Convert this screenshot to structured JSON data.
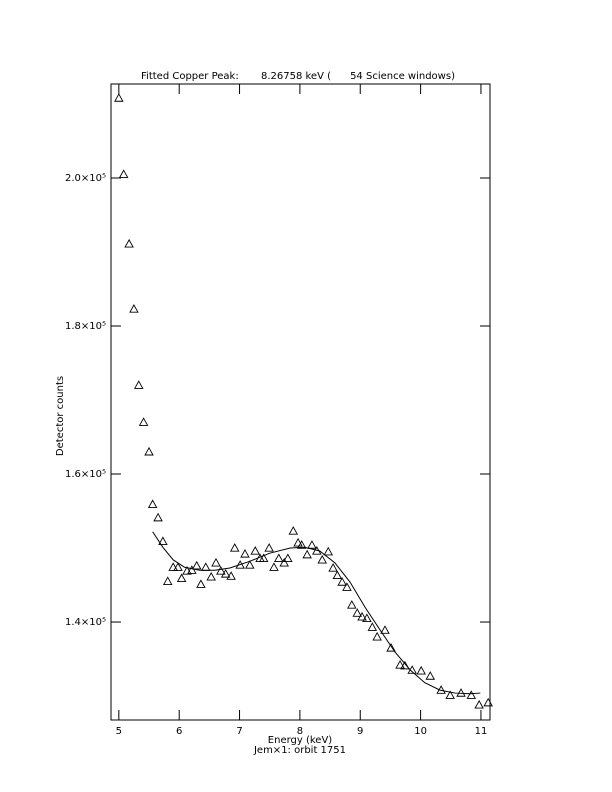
{
  "chart_data": {
    "type": "scatter",
    "title": "Fitted Copper Peak:       8.26758 keV (      54 Science windows)",
    "x_label": "Energy (keV)",
    "subtitle": "Jem×1: orbit 1751",
    "y_label": "Detector counts",
    "xlim": [
      4.87,
      11.15
    ],
    "ylim": [
      126760,
      212700
    ],
    "xticks": [
      5,
      6,
      7,
      8,
      9,
      10,
      11
    ],
    "yticks": [
      {
        "value": 140000,
        "label": "1.4×10⁵"
      },
      {
        "value": 160000,
        "label": "1.6×10⁵"
      },
      {
        "value": 180000,
        "label": "1.8×10⁵"
      },
      {
        "value": 200000,
        "label": "2.0×10⁵"
      }
    ],
    "color": "#000000",
    "series": [
      {
        "marker": "triangle",
        "x": [
          5.0,
          5.08,
          5.17,
          5.25,
          5.33,
          5.41,
          5.5,
          5.56,
          5.65,
          5.73,
          5.81,
          5.9,
          5.98,
          6.04,
          6.13,
          6.21,
          6.29,
          6.36,
          6.44,
          6.53,
          6.61,
          6.69,
          6.77,
          6.86,
          6.92,
          7.01,
          7.09,
          7.17,
          7.26,
          7.34,
          7.4,
          7.49,
          7.57,
          7.65,
          7.74,
          7.8,
          7.89,
          7.97,
          8.03,
          8.12,
          8.2,
          8.28,
          8.37,
          8.47,
          8.55,
          8.62,
          8.7,
          8.78,
          8.86,
          8.95,
          9.03,
          9.11,
          9.2,
          9.28,
          9.41,
          9.51,
          9.66,
          9.74,
          9.86,
          10.01,
          10.16,
          10.34,
          10.49,
          10.67,
          10.84,
          10.97,
          11.12
        ],
        "values": [
          210800,
          200500,
          191100,
          182300,
          172000,
          167000,
          163000,
          155900,
          154100,
          150900,
          145500,
          147400,
          147400,
          145900,
          146900,
          147000,
          147600,
          145100,
          147400,
          146100,
          148000,
          146900,
          146500,
          146200,
          150000,
          147700,
          149200,
          147700,
          149600,
          148600,
          148600,
          150000,
          147400,
          148600,
          148000,
          148600,
          152300,
          150700,
          150400,
          149100,
          150400,
          149600,
          148400,
          149500,
          147300,
          146300,
          145400,
          144700,
          142300,
          141200,
          140700,
          140500,
          139300,
          138000,
          138900,
          136500,
          134200,
          134100,
          133500,
          133400,
          132700,
          130800,
          130100,
          130400,
          130100,
          128800,
          129100
        ]
      },
      {
        "marker": "line",
        "x": [
          5.56,
          5.73,
          5.9,
          6.09,
          6.34,
          6.59,
          6.84,
          7.17,
          7.5,
          7.84,
          8.08,
          8.33,
          8.58,
          8.83,
          9.08,
          9.33,
          9.58,
          9.83,
          10.07,
          10.32,
          10.57,
          10.82,
          10.99
        ],
        "values": [
          152200,
          150100,
          148400,
          147400,
          147000,
          147000,
          147300,
          148200,
          149300,
          150000,
          150100,
          149600,
          148000,
          145400,
          142000,
          138900,
          135900,
          133500,
          131800,
          130800,
          130400,
          130300,
          130400
        ]
      }
    ]
  }
}
